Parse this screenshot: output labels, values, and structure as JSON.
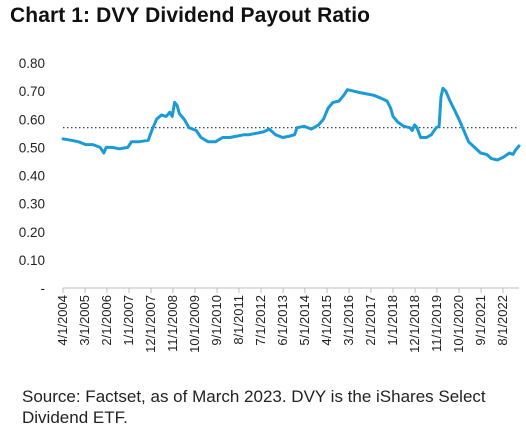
{
  "title": "Chart 1: DVY Dividend Payout Ratio",
  "source": "Source: Factset, as of March 2023. DVY is the iShares Select Dividend ETF.",
  "chart_data": {
    "type": "line",
    "title": "Chart 1: DVY Dividend Payout Ratio",
    "xlabel": "",
    "ylabel": "",
    "y_tick_labels": [
      "-",
      "0.10",
      "0.20",
      "0.30",
      "0.40",
      "0.50",
      "0.60",
      "0.70",
      "0.80"
    ],
    "y_ticks": [
      0,
      0.1,
      0.2,
      0.3,
      0.4,
      0.5,
      0.6,
      0.7,
      0.8
    ],
    "ylim": [
      0,
      0.8
    ],
    "x_tick_labels": [
      "4/1/2004",
      "3/1/2005",
      "2/1/2006",
      "1/1/2007",
      "12/1/2007",
      "11/1/2008",
      "10/1/2009",
      "9/1/2010",
      "8/1/2011",
      "7/1/2012",
      "6/1/2013",
      "5/1/2014",
      "4/1/2015",
      "3/1/2016",
      "2/1/2017",
      "1/1/2018",
      "12/1/2018",
      "11/1/2019",
      "10/1/2020",
      "9/1/2021",
      "8/1/2022"
    ],
    "x_ticks": [
      2004.25,
      2005.17,
      2006.08,
      2007.0,
      2007.92,
      2008.83,
      2009.75,
      2010.67,
      2011.58,
      2012.5,
      2013.42,
      2014.33,
      2015.25,
      2016.17,
      2017.08,
      2018.0,
      2018.92,
      2019.83,
      2020.75,
      2021.67,
      2022.58
    ],
    "xlim": [
      2004.25,
      2023.25
    ],
    "grid": false,
    "reference_line": {
      "value": 0.57,
      "style": "dotted"
    },
    "series": [
      {
        "color": "#1a9bd7",
        "points": [
          [
            2004.25,
            0.53
          ],
          [
            2004.6,
            0.525
          ],
          [
            2004.9,
            0.52
          ],
          [
            2005.2,
            0.51
          ],
          [
            2005.5,
            0.51
          ],
          [
            2005.8,
            0.5
          ],
          [
            2005.95,
            0.48
          ],
          [
            2006.05,
            0.5
          ],
          [
            2006.3,
            0.5
          ],
          [
            2006.6,
            0.495
          ],
          [
            2006.95,
            0.5
          ],
          [
            2007.1,
            0.52
          ],
          [
            2007.4,
            0.52
          ],
          [
            2007.8,
            0.525
          ],
          [
            2007.95,
            0.56
          ],
          [
            2008.15,
            0.6
          ],
          [
            2008.35,
            0.615
          ],
          [
            2008.55,
            0.61
          ],
          [
            2008.7,
            0.625
          ],
          [
            2008.8,
            0.61
          ],
          [
            2008.9,
            0.66
          ],
          [
            2009.0,
            0.65
          ],
          [
            2009.1,
            0.62
          ],
          [
            2009.3,
            0.6
          ],
          [
            2009.5,
            0.57
          ],
          [
            2009.8,
            0.56
          ],
          [
            2010.0,
            0.535
          ],
          [
            2010.3,
            0.52
          ],
          [
            2010.6,
            0.52
          ],
          [
            2010.9,
            0.535
          ],
          [
            2011.2,
            0.535
          ],
          [
            2011.5,
            0.54
          ],
          [
            2011.8,
            0.545
          ],
          [
            2012.0,
            0.545
          ],
          [
            2012.3,
            0.55
          ],
          [
            2012.6,
            0.555
          ],
          [
            2012.85,
            0.565
          ],
          [
            2013.1,
            0.545
          ],
          [
            2013.4,
            0.535
          ],
          [
            2013.7,
            0.54
          ],
          [
            2013.9,
            0.545
          ],
          [
            2014.0,
            0.57
          ],
          [
            2014.3,
            0.575
          ],
          [
            2014.6,
            0.565
          ],
          [
            2014.9,
            0.58
          ],
          [
            2015.1,
            0.6
          ],
          [
            2015.3,
            0.64
          ],
          [
            2015.5,
            0.66
          ],
          [
            2015.75,
            0.665
          ],
          [
            2015.95,
            0.685
          ],
          [
            2016.1,
            0.705
          ],
          [
            2016.35,
            0.7
          ],
          [
            2016.6,
            0.695
          ],
          [
            2016.9,
            0.69
          ],
          [
            2017.2,
            0.685
          ],
          [
            2017.5,
            0.675
          ],
          [
            2017.75,
            0.665
          ],
          [
            2017.9,
            0.64
          ],
          [
            2018.0,
            0.61
          ],
          [
            2018.2,
            0.59
          ],
          [
            2018.45,
            0.575
          ],
          [
            2018.7,
            0.57
          ],
          [
            2018.8,
            0.56
          ],
          [
            2018.9,
            0.58
          ],
          [
            2019.0,
            0.57
          ],
          [
            2019.15,
            0.535
          ],
          [
            2019.4,
            0.535
          ],
          [
            2019.6,
            0.545
          ],
          [
            2019.8,
            0.57
          ],
          [
            2019.92,
            0.575
          ],
          [
            2020.0,
            0.68
          ],
          [
            2020.08,
            0.71
          ],
          [
            2020.2,
            0.7
          ],
          [
            2020.35,
            0.67
          ],
          [
            2020.55,
            0.635
          ],
          [
            2020.75,
            0.6
          ],
          [
            2020.95,
            0.56
          ],
          [
            2021.15,
            0.52
          ],
          [
            2021.4,
            0.5
          ],
          [
            2021.65,
            0.48
          ],
          [
            2021.9,
            0.475
          ],
          [
            2022.1,
            0.46
          ],
          [
            2022.35,
            0.455
          ],
          [
            2022.6,
            0.465
          ],
          [
            2022.85,
            0.48
          ],
          [
            2023.0,
            0.475
          ],
          [
            2023.1,
            0.49
          ],
          [
            2023.25,
            0.505
          ]
        ]
      }
    ]
  }
}
